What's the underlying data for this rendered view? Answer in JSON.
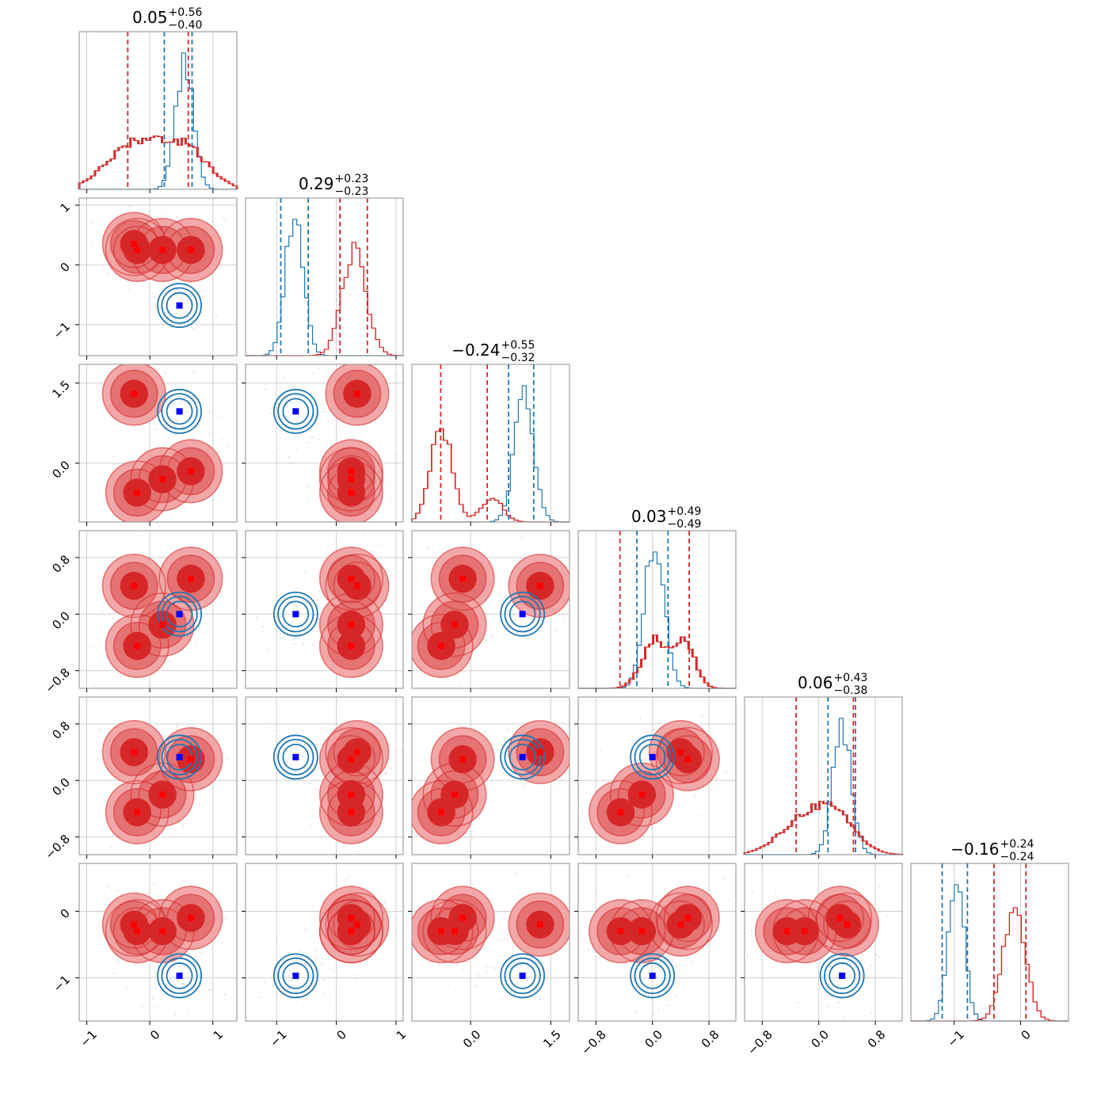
{
  "chart_data": {
    "type": "corner",
    "series": [
      {
        "name": "",
        "color": "#d62728"
      },
      {
        "name": "",
        "color": "#1f77b4"
      }
    ],
    "colors": {
      "red": "#d62728",
      "red_light": "#f2a8a8",
      "red_mid": "#e57373",
      "blue": "#1f77b4",
      "marker_blue": "#0000ff",
      "marker_red": "#ff0000"
    },
    "grid": true,
    "parameters": [
      {
        "title": {
          "median": "0.05",
          "plus": "+0.56",
          "minus": "−0.40"
        },
        "range": [
          -1.12,
          1.38
        ],
        "ticks": [
          {
            "v": -1,
            "label": "−1"
          },
          {
            "v": 0,
            "label": "0"
          },
          {
            "v": 1,
            "label": "1"
          }
        ],
        "red_hist_peak": -0.2,
        "red_quantiles": [
          -0.35,
          0.61
        ],
        "blue_hist_peak": 0.55,
        "blue_quantiles": [
          0.23,
          0.67
        ]
      },
      {
        "title": {
          "median": "0.29",
          "plus": "+0.23",
          "minus": "−0.23"
        },
        "range": [
          -1.52,
          1.12
        ],
        "ticks": [
          {
            "v": -1,
            "label": "−1"
          },
          {
            "v": 0,
            "label": "0"
          },
          {
            "v": 1,
            "label": "1"
          }
        ],
        "red_hist_peak": 0.3,
        "red_quantiles": [
          0.06,
          0.52
        ],
        "blue_hist_peak": -0.7,
        "blue_quantiles": [
          -0.93,
          -0.47
        ]
      },
      {
        "title": {
          "median": "−0.24",
          "plus": "+0.55",
          "minus": "−0.32"
        },
        "range": [
          -1.1,
          1.85
        ],
        "ticks": [
          {
            "v": 0,
            "label": "0.0"
          },
          {
            "v": 1.5,
            "label": "1.5"
          }
        ],
        "red_hist_peak": -0.55,
        "red_quantiles": [
          -0.56,
          0.31
        ],
        "blue_hist_peak": 1.0,
        "blue_quantiles": [
          0.71,
          1.18
        ]
      },
      {
        "title": {
          "median": "0.03",
          "plus": "+0.49",
          "minus": "−0.49"
        },
        "range": [
          -1.05,
          1.18
        ],
        "ticks": [
          {
            "v": -0.8,
            "label": "−0.8"
          },
          {
            "v": 0,
            "label": "0.0"
          },
          {
            "v": 0.8,
            "label": "0.8"
          }
        ],
        "red_hist_peak": 0.03,
        "red_quantiles": [
          -0.46,
          0.52
        ],
        "blue_hist_peak": 0.03,
        "blue_quantiles": [
          -0.22,
          0.22
        ]
      },
      {
        "title": {
          "median": "0.06",
          "plus": "+0.43",
          "minus": "−0.38"
        },
        "range": [
          -1.05,
          1.18
        ],
        "ticks": [
          {
            "v": -0.8,
            "label": "−0.8"
          },
          {
            "v": 0,
            "label": "0.0"
          },
          {
            "v": 0.8,
            "label": "0.8"
          }
        ],
        "red_hist_peak": -0.2,
        "red_quantiles": [
          -0.32,
          0.49
        ],
        "blue_hist_peak": 0.33,
        "blue_quantiles": [
          0.13,
          0.52
        ]
      },
      {
        "title": {
          "median": "−0.16",
          "plus": "+0.24",
          "minus": "−0.24"
        },
        "range": [
          -1.65,
          0.72
        ],
        "ticks": [
          {
            "v": -1,
            "label": "−1"
          },
          {
            "v": 0,
            "label": "0"
          }
        ],
        "red_hist_peak": -0.1,
        "red_quantiles": [
          -0.4,
          0.08
        ],
        "blue_hist_peak": -0.97,
        "blue_quantiles": [
          -1.18,
          -0.8
        ]
      }
    ],
    "red_modes": [
      [
        -0.25,
        0.35,
        1.3,
        0.4,
        0.4,
        -0.2
      ],
      [
        -0.2,
        0.25,
        -0.55,
        -0.45,
        -0.45,
        -0.3
      ],
      [
        0.2,
        0.25,
        -0.3,
        -0.15,
        -0.2,
        -0.3
      ],
      [
        0.65,
        0.25,
        -0.15,
        0.5,
        0.3,
        -0.1
      ]
    ],
    "blue_mode": [
      0.47,
      -0.68,
      0.97,
      0.0,
      0.33,
      -0.97
    ]
  }
}
